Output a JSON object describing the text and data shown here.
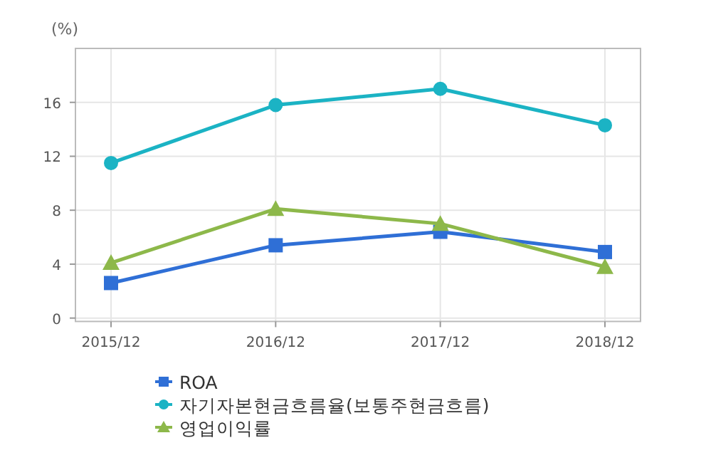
{
  "chart_data": {
    "type": "line",
    "ylabel": "(%)",
    "categories": [
      "2015/12",
      "2016/12",
      "2017/12",
      "2018/12"
    ],
    "series": [
      {
        "name": "ROA",
        "color": "#2f6fd6",
        "marker": "square",
        "values": [
          2.6,
          5.4,
          6.4,
          4.9
        ]
      },
      {
        "name": "자기자본현금흐름율(보통주현금흐름)",
        "color": "#1bb3c4",
        "marker": "circle",
        "values": [
          11.5,
          15.8,
          17.0,
          14.3
        ]
      },
      {
        "name": "영업이익률",
        "color": "#8db84a",
        "marker": "triangle",
        "values": [
          4.1,
          8.1,
          7.0,
          3.8
        ]
      }
    ],
    "ylim": [
      -0.25,
      20
    ],
    "yticks": [
      0,
      4,
      8,
      12,
      16
    ],
    "grid": true,
    "legend": "bottom",
    "line_style": "solid"
  }
}
